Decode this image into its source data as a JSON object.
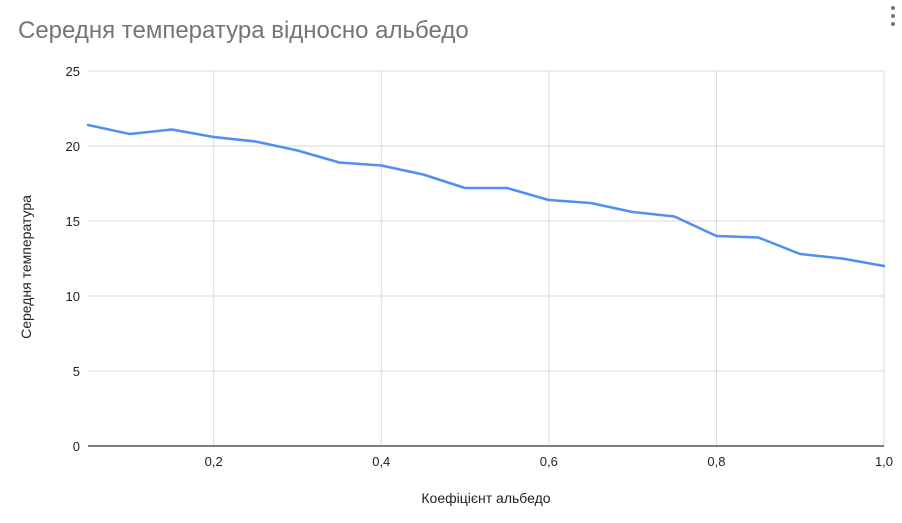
{
  "chart": {
    "title": "Середня температура відносно альбедо",
    "menu_icon": "more-vert-icon"
  },
  "colors": {
    "line": "#4f8ff0",
    "grid": "#d9d9d9",
    "axis": "#333333",
    "title": "#757575",
    "tick": "#222222"
  },
  "chart_data": {
    "type": "line",
    "title": "Середня температура відносно альбедо",
    "xlabel": "Коефіцієнт альбедо",
    "ylabel": "Середня температура",
    "xlim": [
      0.05,
      1.0
    ],
    "ylim": [
      0,
      25
    ],
    "x_ticks": [
      0.2,
      0.4,
      0.6,
      0.8,
      1.0
    ],
    "x_tick_labels": [
      "0,2",
      "0,4",
      "0,6",
      "0,8",
      "1,0"
    ],
    "y_ticks": [
      0,
      5,
      10,
      15,
      20,
      25
    ],
    "y_tick_labels": [
      "0",
      "5",
      "10",
      "15",
      "20",
      "25"
    ],
    "grid": true,
    "legend": "none",
    "series": [
      {
        "x": [
          0.05,
          0.1,
          0.15,
          0.2,
          0.25,
          0.3,
          0.35,
          0.4,
          0.45,
          0.5,
          0.55,
          0.6,
          0.65,
          0.7,
          0.75,
          0.8,
          0.85,
          0.9,
          0.95,
          1.0
        ],
        "values": [
          21.4,
          20.8,
          21.1,
          20.6,
          20.3,
          19.7,
          18.9,
          18.7,
          18.1,
          17.2,
          17.2,
          16.4,
          16.2,
          15.6,
          15.3,
          14.0,
          13.9,
          12.8,
          12.5,
          12.0
        ]
      }
    ]
  }
}
